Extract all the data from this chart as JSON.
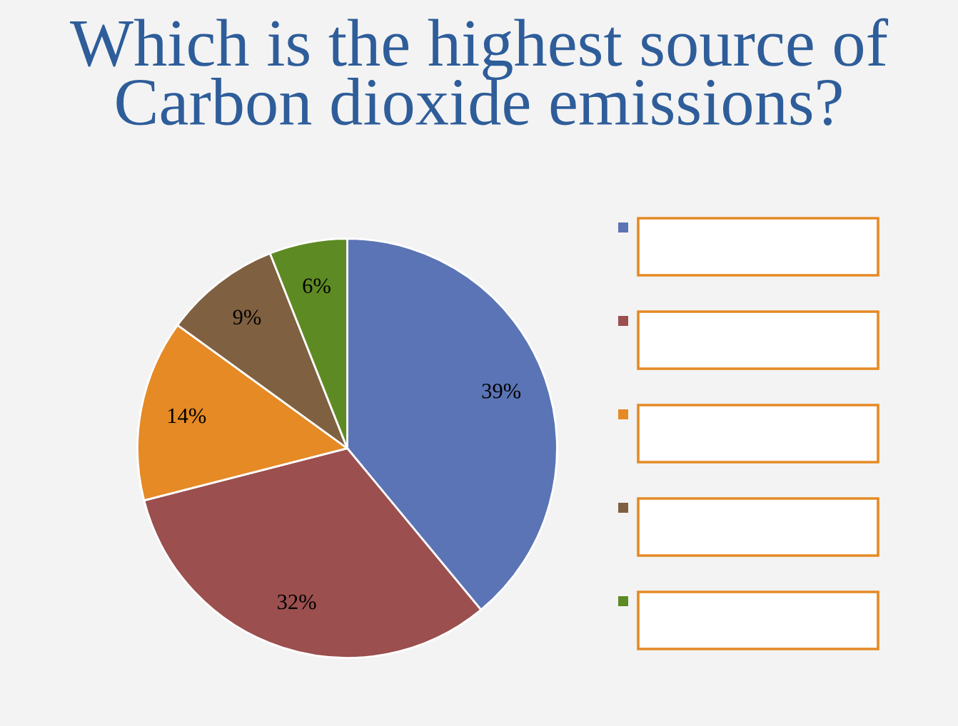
{
  "chart_data": {
    "type": "pie",
    "title": "Which is the highest source of Carbon dioxide emissions?",
    "categories": [
      null,
      null,
      null,
      null,
      null
    ],
    "values": [
      39,
      32,
      14,
      9,
      6
    ],
    "value_labels": [
      "39%",
      "32%",
      "14%",
      "9%",
      "6%"
    ],
    "colors": [
      "#5b74b5",
      "#9b4f4e",
      "#e58a25",
      "#7f6041",
      "#5e8a23"
    ]
  }
}
